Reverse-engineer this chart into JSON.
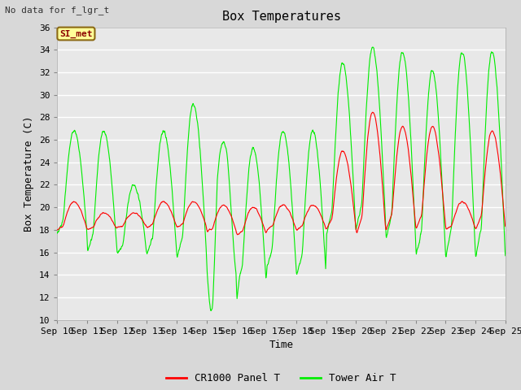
{
  "title": "Box Temperatures",
  "no_data_text": "No data for f_lgr_t",
  "si_met_label": "SI_met",
  "xlabel": "Time",
  "ylabel": "Box Temperature (C)",
  "ylim": [
    10,
    36
  ],
  "yticks": [
    10,
    12,
    14,
    16,
    18,
    20,
    22,
    24,
    26,
    28,
    30,
    32,
    34,
    36
  ],
  "x_labels": [
    "Sep 10",
    "Sep 11",
    "Sep 12",
    "Sep 13",
    "Sep 14",
    "Sep 15",
    "Sep 16",
    "Sep 17",
    "Sep 18",
    "Sep 19",
    "Sep 20",
    "Sep 21",
    "Sep 22",
    "Sep 23",
    "Sep 24",
    "Sep 25"
  ],
  "background_color": "#d8d8d8",
  "plot_bg_color": "#e8e8e8",
  "grid_color": "#ffffff",
  "cr1000_color": "#ff0000",
  "tower_air_color": "#00ee00",
  "legend_cr1000": "CR1000 Panel T",
  "legend_tower": "Tower Air T",
  "title_fontsize": 11,
  "axis_label_fontsize": 9,
  "tick_fontsize": 8,
  "figwidth": 6.4,
  "figheight": 4.8,
  "dpi": 100
}
